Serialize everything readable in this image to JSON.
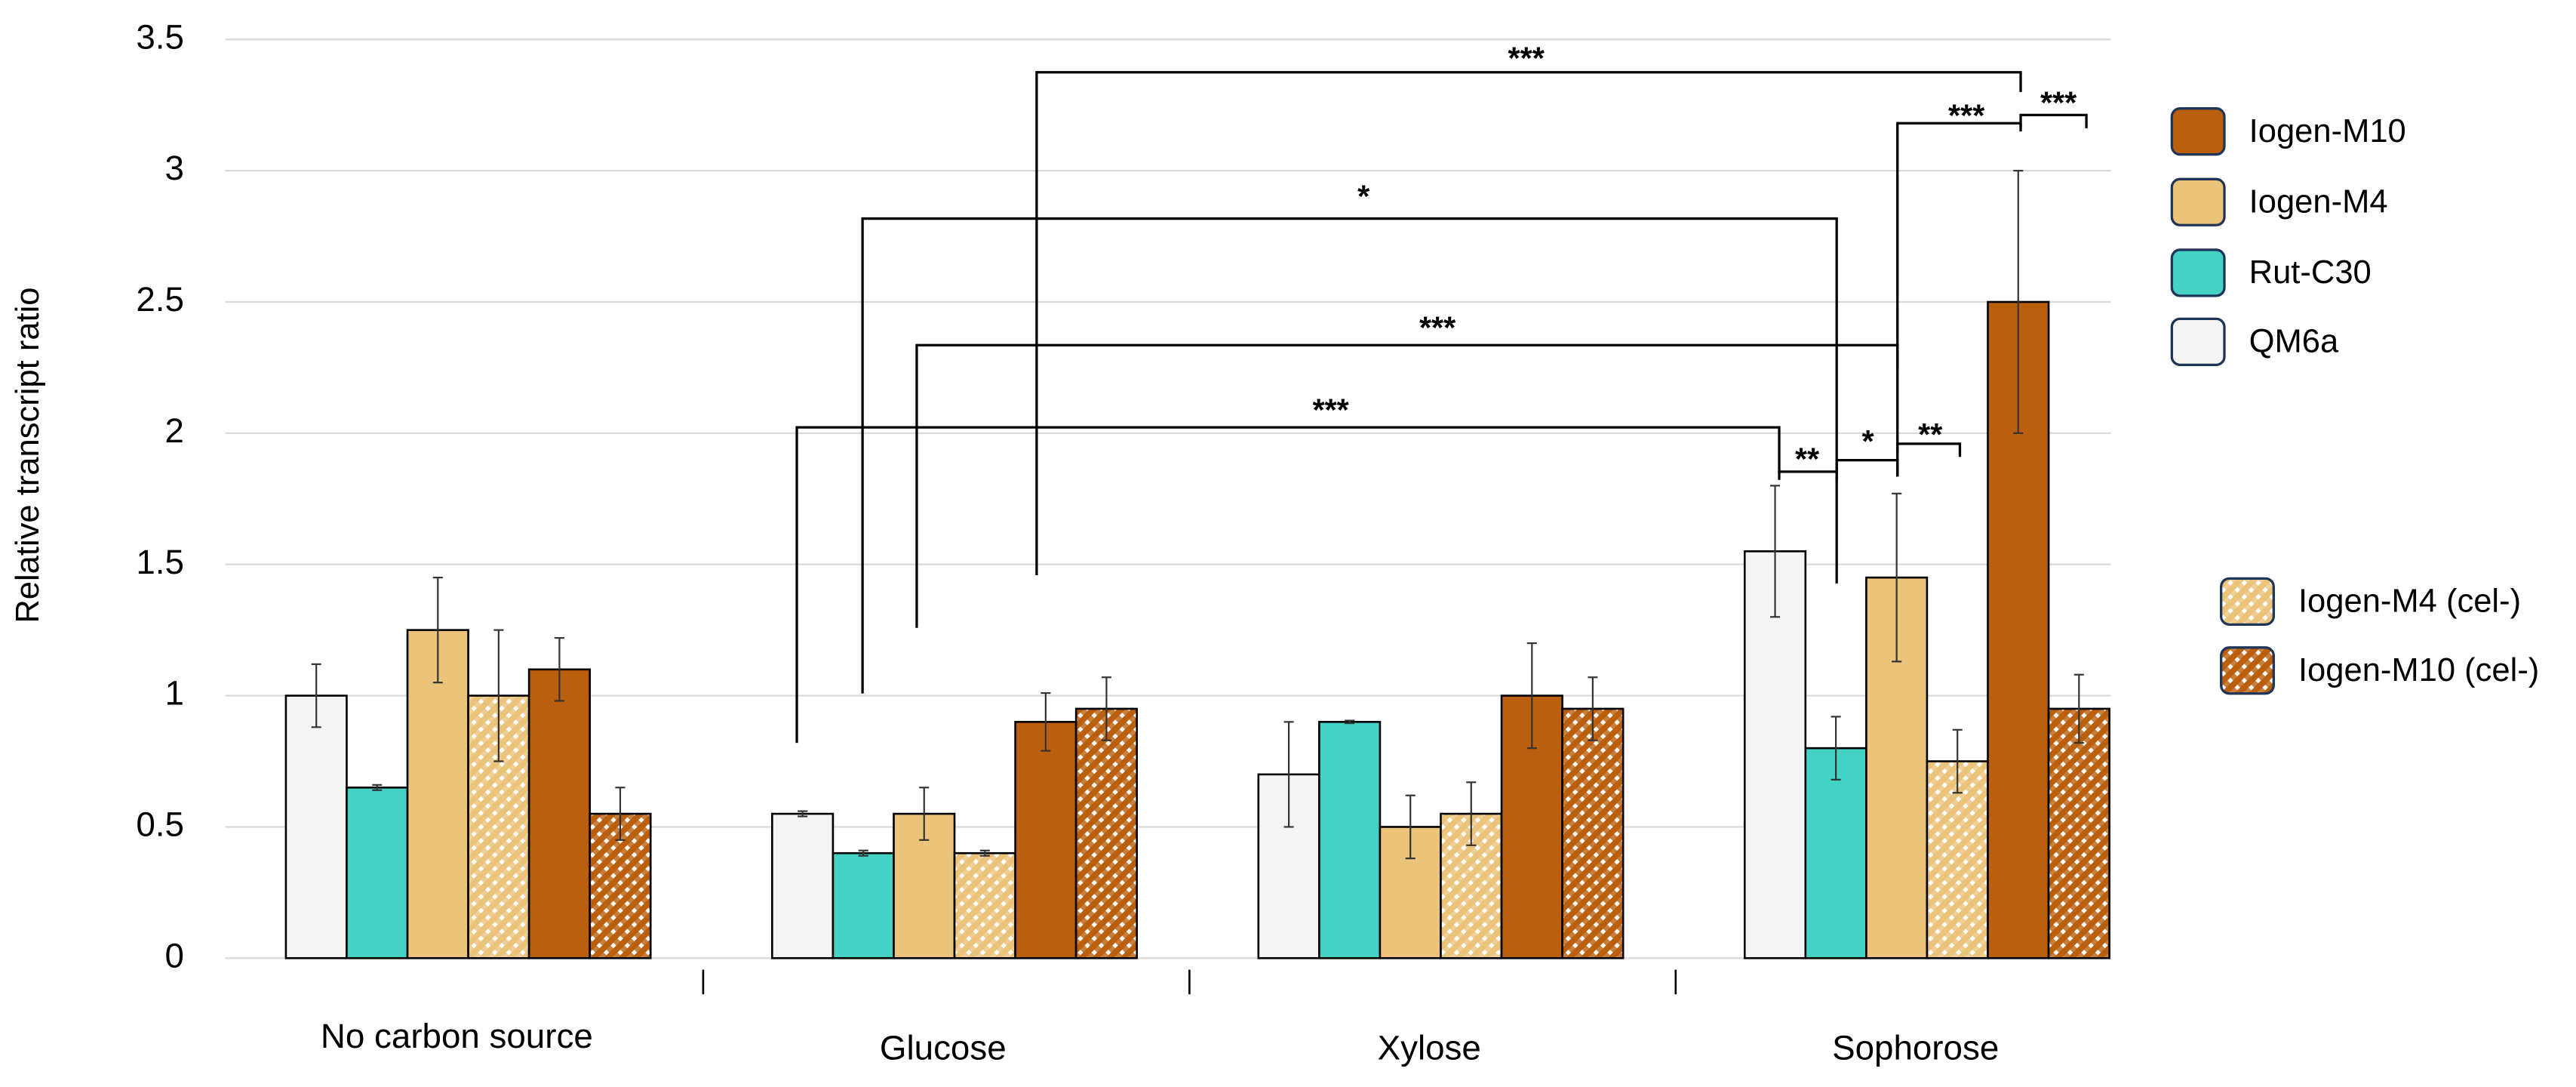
{
  "chart_data": {
    "type": "bar",
    "y_label": "Relative transcript ratio",
    "categories": [
      "No carbon source",
      "Glucose",
      "Xylose",
      "Sophorose"
    ],
    "series": [
      {
        "name": "QM6a",
        "color": "#f4f4f4",
        "hatch": false,
        "values": [
          1.0,
          0.55,
          0.7,
          1.55
        ],
        "errors": [
          0.12,
          0.01,
          0.2,
          0.25
        ]
      },
      {
        "name": "Rut-C30",
        "color": "#45d1c4",
        "hatch": false,
        "values": [
          0.65,
          0.4,
          0.9,
          0.8
        ],
        "errors": [
          0.01,
          0.01,
          0.005,
          0.12
        ]
      },
      {
        "name": "Iogen-M4",
        "color": "#ebc37a",
        "hatch": false,
        "values": [
          1.25,
          0.55,
          0.5,
          1.45
        ],
        "errors": [
          0.2,
          0.1,
          0.12,
          0.32
        ]
      },
      {
        "name": "Iogen-M4 (cel-)",
        "color": "#ebc37a",
        "hatch": true,
        "values": [
          1.0,
          0.4,
          0.55,
          0.75
        ],
        "errors": [
          0.25,
          0.01,
          0.12,
          0.12
        ]
      },
      {
        "name": "Iogen-M10",
        "color": "#b95f0d",
        "hatch": false,
        "values": [
          1.1,
          0.9,
          1.0,
          2.5
        ],
        "errors": [
          0.12,
          0.11,
          0.2,
          0.5
        ]
      },
      {
        "name": "Iogen-M10 (cel-)",
        "color": "#b95f0d",
        "hatch": true,
        "values": [
          0.55,
          0.95,
          0.95,
          0.95
        ],
        "errors": [
          0.1,
          0.12,
          0.12,
          0.13
        ]
      }
    ],
    "ylim": [
      0,
      3.5
    ],
    "yticks": [
      0,
      0.5,
      1,
      1.5,
      2,
      2.5,
      3,
      3.5
    ],
    "grid": true,
    "annotations": [
      {
        "label": "***"
      },
      {
        "label": "***"
      },
      {
        "label": "***"
      },
      {
        "label": "*"
      },
      {
        "label": "***"
      },
      {
        "label": "***"
      },
      {
        "label": "**"
      },
      {
        "label": "*"
      },
      {
        "label": "**"
      }
    ]
  }
}
